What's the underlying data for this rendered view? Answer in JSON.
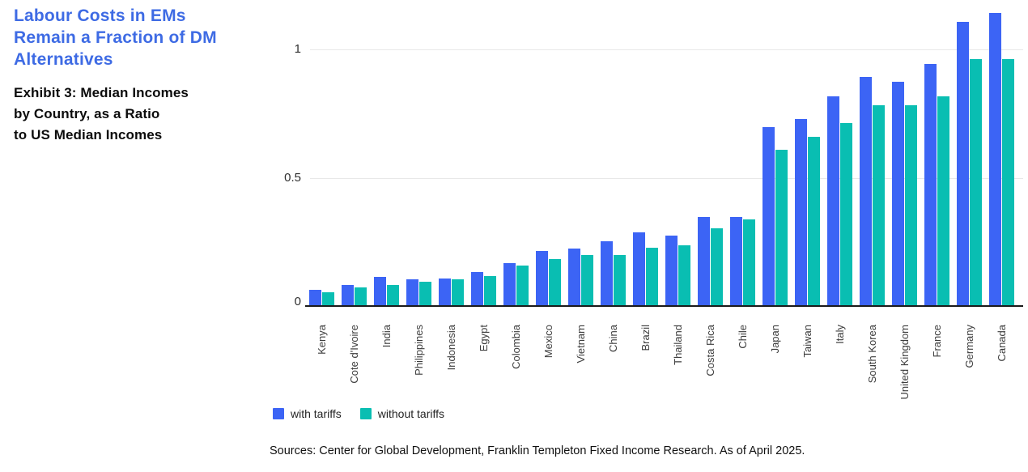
{
  "panel": {
    "title": "Labour Costs in EMs\nRemain a Fraction of DM\nAlternatives",
    "subtitle": "Exhibit 3: Median Incomes\nby Country, as a Ratio\nto US Median Incomes"
  },
  "colors": {
    "title_blue": "#3E6BE4",
    "with_tariffs": "#3C64F5",
    "without_tariffs": "#09BEB2",
    "gridline": "#E8E8E8",
    "axis": "#1B1B1B"
  },
  "source_note": "Sources: Center for Global Development, Franklin Templeton Fixed Income Research. As of April 2025.",
  "chart_data": {
    "type": "bar",
    "title": "Labour Costs in EMs Remain a Fraction of DM Alternatives",
    "subtitle": "Exhibit 3: Median Incomes by Country, as a Ratio to US Median Incomes",
    "categories": [
      "Kenya",
      "Cote d'Ivoire",
      "India",
      "Philippines",
      "Indonesia",
      "Egypt",
      "Colombia",
      "Mexico",
      "Vietnam",
      "China",
      "Brazil",
      "Thailand",
      "Costa Rica",
      "Chile",
      "Japan",
      "Taiwan",
      "Italy",
      "South Korea",
      "United Kingdom",
      "France",
      "Germany",
      "Canada"
    ],
    "series": [
      {
        "name": "with tariffs",
        "color": "#3C64F5",
        "values": [
          0.06,
          0.08,
          0.11,
          0.1,
          0.105,
          0.13,
          0.165,
          0.21,
          0.22,
          0.25,
          0.285,
          0.27,
          0.345,
          0.345,
          0.695,
          0.725,
          0.815,
          0.89,
          0.87,
          0.94,
          1.105,
          1.14
        ]
      },
      {
        "name": "without tariffs",
        "color": "#09BEB2",
        "values": [
          0.05,
          0.07,
          0.08,
          0.09,
          0.1,
          0.115,
          0.155,
          0.18,
          0.195,
          0.195,
          0.225,
          0.235,
          0.3,
          0.335,
          0.605,
          0.655,
          0.71,
          0.78,
          0.78,
          0.815,
          0.96,
          0.96
        ]
      }
    ],
    "xlabel": "",
    "ylabel": "",
    "ylim": [
      0,
      1.2
    ],
    "yticks": [
      0,
      0.5,
      1
    ],
    "grid": "horizontal",
    "legend_position": "bottom-left"
  }
}
